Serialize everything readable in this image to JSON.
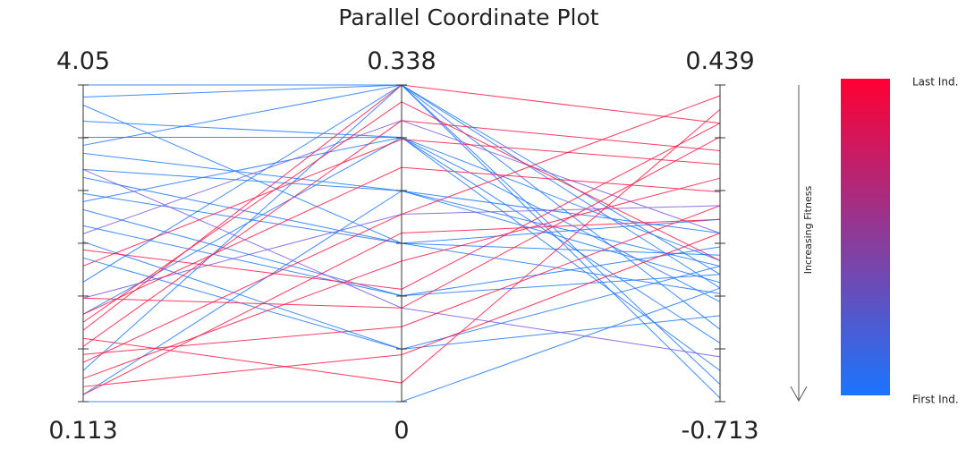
{
  "chart_data": {
    "type": "parallel",
    "title": "Parallel Coordinate Plot",
    "axes": [
      {
        "min": 0.113,
        "max": 4.05,
        "min_label": "0.113",
        "max_label": "4.05",
        "ticks": [
          0.113,
          0.769,
          1.426,
          2.082,
          2.738,
          3.394,
          4.05
        ]
      },
      {
        "min": 0,
        "max": 0.338,
        "min_label": "0",
        "max_label": "0.338",
        "ticks": [
          0,
          0.0563,
          0.1127,
          0.169,
          0.2253,
          0.2817,
          0.338
        ]
      },
      {
        "min": -0.713,
        "max": 0.439,
        "min_label": "-0.713",
        "max_label": "0.439",
        "ticks": [
          -0.713,
          -0.521,
          -0.329,
          -0.137,
          0.055,
          0.247,
          0.439
        ]
      }
    ],
    "lines": [
      {
        "color": "#1f78ff",
        "values": [
          4.05,
          0.338,
          -0.25
        ]
      },
      {
        "color": "#1f78ff",
        "values": [
          3.9,
          0.338,
          -0.3
        ]
      },
      {
        "color": "#1f78ff",
        "values": [
          3.6,
          0.282,
          -0.2
        ]
      },
      {
        "color": "#1f78ff",
        "values": [
          3.4,
          0.282,
          -0.35
        ]
      },
      {
        "color": "#1f78ff",
        "values": [
          3.2,
          0.225,
          -0.22
        ]
      },
      {
        "color": "#1f78ff",
        "values": [
          3.0,
          0.225,
          -0.28
        ]
      },
      {
        "color": "#1f78ff",
        "values": [
          2.9,
          0.169,
          -0.18
        ]
      },
      {
        "color": "#1f78ff",
        "values": [
          2.7,
          0.169,
          -0.32
        ]
      },
      {
        "color": "#1f78ff",
        "values": [
          2.5,
          0.113,
          -0.25
        ]
      },
      {
        "color": "#1f78ff",
        "values": [
          2.3,
          0.113,
          -0.15
        ]
      },
      {
        "color": "#1f78ff",
        "values": [
          2.1,
          0.056,
          -0.4
        ]
      },
      {
        "color": "#1f78ff",
        "values": [
          1.9,
          0.056,
          -0.22
        ]
      },
      {
        "color": "#1f78ff",
        "values": [
          1.6,
          0.338,
          -0.45
        ]
      },
      {
        "color": "#1f78ff",
        "values": [
          1.2,
          0.282,
          -0.6
        ]
      },
      {
        "color": "#1f78ff",
        "values": [
          0.5,
          0.338,
          -0.7
        ]
      },
      {
        "color": "#1f78ff",
        "values": [
          0.2,
          0.225,
          -0.1
        ]
      },
      {
        "color": "#1f78ff",
        "values": [
          3.8,
          0.169,
          -0.05
        ]
      },
      {
        "color": "#1f78ff",
        "values": [
          2.6,
          0.282,
          -0.5
        ]
      },
      {
        "color": "#1f78ff",
        "values": [
          0.113,
          0,
          -0.3
        ]
      },
      {
        "color": "#1f78ff",
        "values": [
          3.3,
          0.338,
          -0.65
        ]
      },
      {
        "color": "#7a5ae0",
        "values": [
          2.2,
          0.3,
          -0.1
        ]
      },
      {
        "color": "#7a5ae0",
        "values": [
          1.4,
          0.2,
          0.0
        ]
      },
      {
        "color": "#7a5ae0",
        "values": [
          3.0,
          0.1,
          -0.55
        ]
      },
      {
        "color": "#ff1744",
        "values": [
          1.0,
          0.338,
          0.3
        ]
      },
      {
        "color": "#ff1744",
        "values": [
          0.8,
          0.3,
          0.2
        ]
      },
      {
        "color": "#ff1744",
        "values": [
          1.2,
          0.25,
          0.05
        ]
      },
      {
        "color": "#ff1744",
        "values": [
          0.6,
          0.2,
          0.4
        ]
      },
      {
        "color": "#ff1744",
        "values": [
          0.4,
          0.15,
          0.1
        ]
      },
      {
        "color": "#ff1744",
        "values": [
          1.4,
          0.1,
          0.25
        ]
      },
      {
        "color": "#ff1744",
        "values": [
          0.3,
          0.05,
          -0.1
        ]
      },
      {
        "color": "#ff1744",
        "values": [
          0.9,
          0.02,
          0.35
        ]
      },
      {
        "color": "#ff1744",
        "values": [
          1.8,
          0.28,
          0.15
        ]
      },
      {
        "color": "#ff1744",
        "values": [
          0.2,
          0.18,
          -0.05
        ]
      },
      {
        "color": "#ff1744",
        "values": [
          2.0,
          0.12,
          0.3
        ]
      },
      {
        "color": "#ff1744",
        "values": [
          0.7,
          0.08,
          0.0
        ]
      },
      {
        "color": "#ff1744",
        "values": [
          1.1,
          0.32,
          -0.2
        ]
      }
    ],
    "colorbar": {
      "top_label": "Last Ind.",
      "bottom_label": "First Ind.",
      "top_color": "#ff0033",
      "bottom_color": "#1a75ff",
      "arrow_label": "Increasing Fitness"
    }
  }
}
